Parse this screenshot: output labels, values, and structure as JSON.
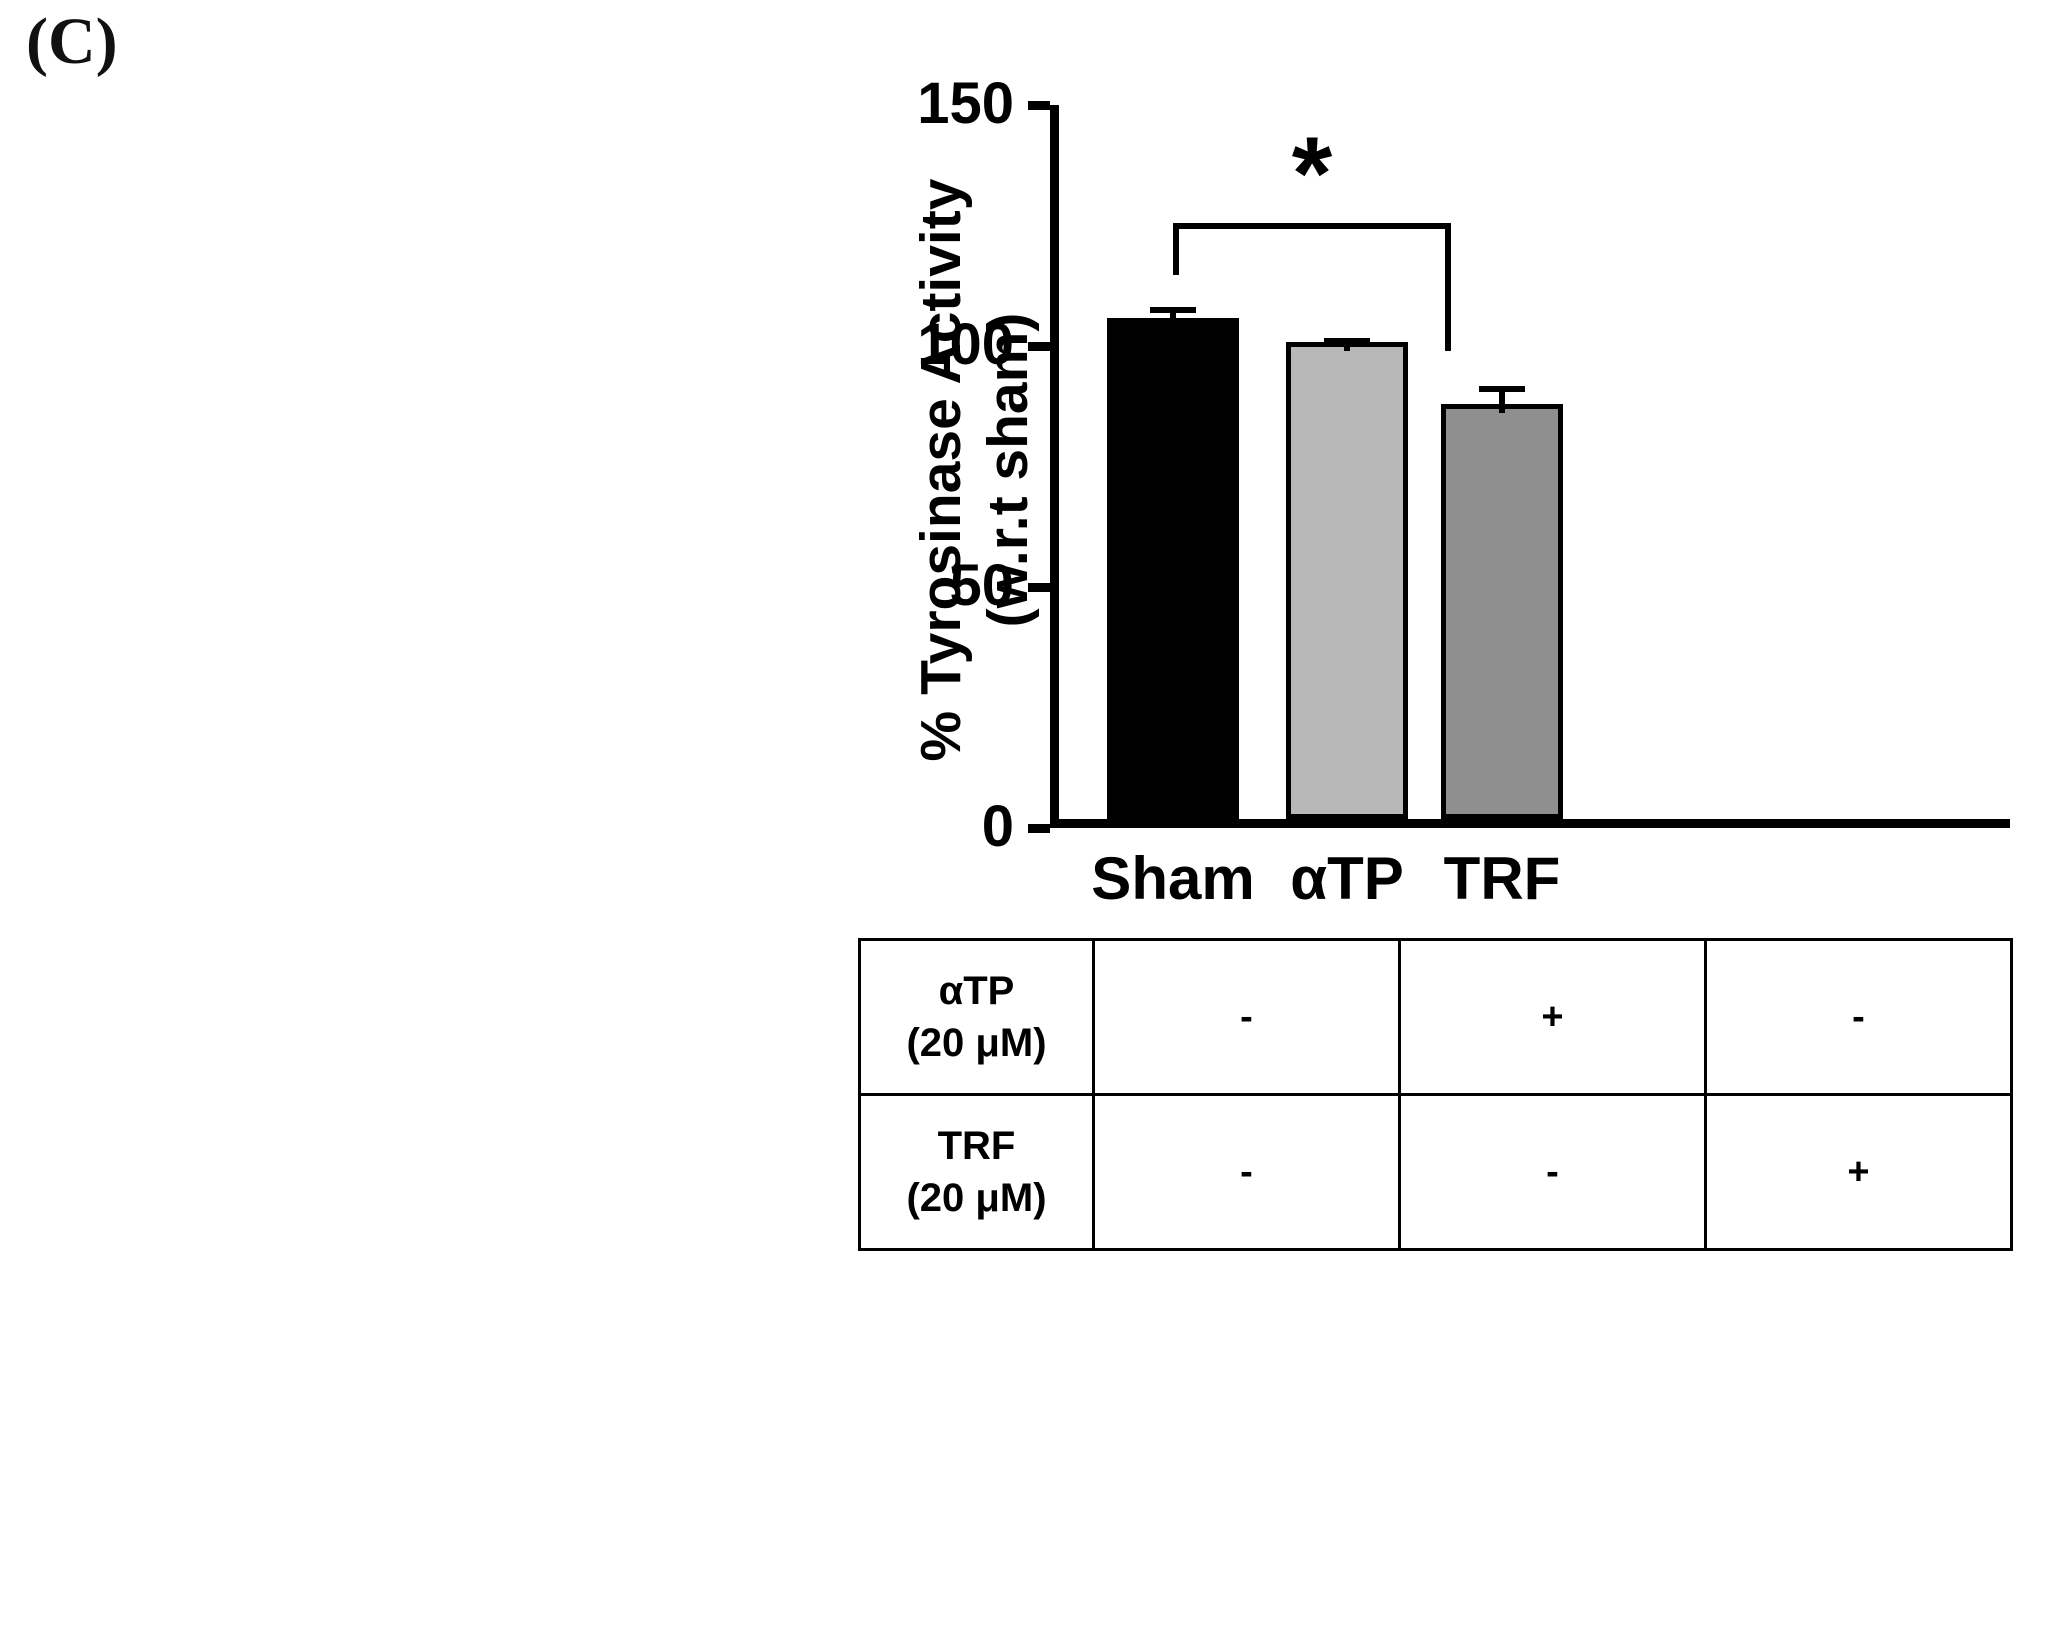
{
  "panel_label": "(C)",
  "chart_data": {
    "type": "bar",
    "categories": [
      "Sham",
      "αTP",
      "TRF"
    ],
    "values": [
      104,
      99,
      86
    ],
    "errors": [
      3.5,
      2,
      5
    ],
    "bar_colors": [
      "#000000",
      "#b8b8b8",
      "#8f8f8f"
    ],
    "title": "",
    "xlabel": "",
    "ylabel": "% Tyrosinase Activity (w.r.t sham)",
    "ylabel_line1": "% Tyrosinase Activity",
    "ylabel_line2": "(w.r.t sham)",
    "ylim": [
      0,
      150
    ],
    "yticks": [
      0,
      50,
      100,
      150
    ],
    "grid": false,
    "legend": "none",
    "significance": {
      "label": "*",
      "from": "Sham",
      "to": "TRF",
      "from_index": 0,
      "to_index": 2
    }
  },
  "table": {
    "rows": [
      {
        "label_line1": "αTP",
        "label_line2": "(20 μM)",
        "cells": [
          "-",
          "+",
          "-"
        ]
      },
      {
        "label_line1": "TRF",
        "label_line2": "(20 μM)",
        "cells": [
          "-",
          "-",
          "+"
        ]
      }
    ]
  },
  "colors": {
    "axis": "#000000",
    "background": "#ffffff"
  }
}
